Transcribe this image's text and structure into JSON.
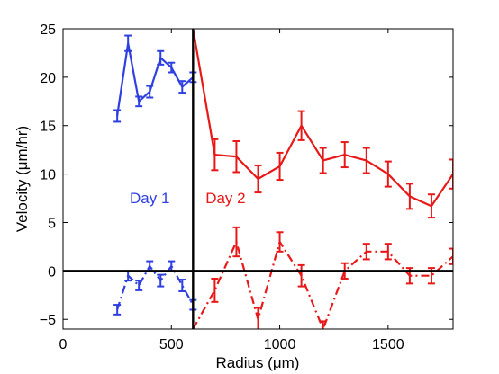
{
  "chart_data": {
    "type": "line",
    "title": "",
    "xlabel": "Radius (μm)",
    "ylabel": "Velocity (μm/hr)",
    "xlim": [
      0,
      1800
    ],
    "ylim": [
      -6,
      25
    ],
    "xticks": [
      0,
      500,
      1000,
      1500
    ],
    "yticks": [
      -5,
      0,
      5,
      10,
      15,
      20,
      25
    ],
    "grid": false,
    "legend": "none",
    "reference_lines": [
      {
        "orientation": "horizontal",
        "value": 0
      },
      {
        "orientation": "vertical",
        "value": 600
      }
    ],
    "annotations": [
      {
        "text": "Day 1",
        "x": 400,
        "y": 7,
        "color": "#2f3fe0"
      },
      {
        "text": "Day 2",
        "x": 750,
        "y": 7,
        "color": "#e81818"
      }
    ],
    "series": [
      {
        "color": "#2f3fe0",
        "dash": "solid",
        "x": [
          250,
          300,
          350,
          400,
          450,
          500,
          550,
          600
        ],
        "y": [
          16,
          23.5,
          17.5,
          18.5,
          22,
          21,
          19,
          20
        ],
        "err": [
          0.6,
          0.8,
          0.5,
          0.6,
          0.7,
          0.5,
          0.6,
          0.5
        ]
      },
      {
        "color": "#2f3fe0",
        "dash": "dashdot",
        "x": [
          250,
          300,
          350,
          400,
          450,
          500,
          550,
          600
        ],
        "y": [
          -4,
          -0.5,
          -1.5,
          0.5,
          -1,
          0.5,
          -1.5,
          -3.5
        ],
        "err": [
          0.5,
          0.5,
          0.5,
          0.5,
          0.6,
          0.5,
          0.6,
          0.5
        ]
      },
      {
        "color": "#e81818",
        "dash": "solid",
        "x": [
          600,
          700,
          800,
          900,
          1000,
          1100,
          1200,
          1300,
          1400,
          1500,
          1600,
          1700,
          1800
        ],
        "y": [
          25,
          12,
          11.8,
          9.5,
          10.8,
          15,
          11.4,
          12,
          11.4,
          10,
          7.7,
          6.7,
          10
        ],
        "err": [
          0,
          1.6,
          1.6,
          1.4,
          1.4,
          1.5,
          1.3,
          1.3,
          1.3,
          1.3,
          1.3,
          1.2,
          1.5
        ]
      },
      {
        "color": "#e81818",
        "dash": "dashdot",
        "x": [
          600,
          700,
          800,
          900,
          1000,
          1100,
          1200,
          1300,
          1400,
          1500,
          1600,
          1700,
          1800
        ],
        "y": [
          -6,
          -2,
          3,
          -5,
          3,
          -0.5,
          -6,
          0,
          2,
          2,
          -0.5,
          -0.5,
          1.5
        ],
        "err": [
          0,
          1.2,
          1.5,
          1.2,
          1.0,
          1.1,
          0.8,
          0.8,
          0.8,
          0.8,
          0.8,
          0.8,
          0.8
        ]
      }
    ]
  }
}
